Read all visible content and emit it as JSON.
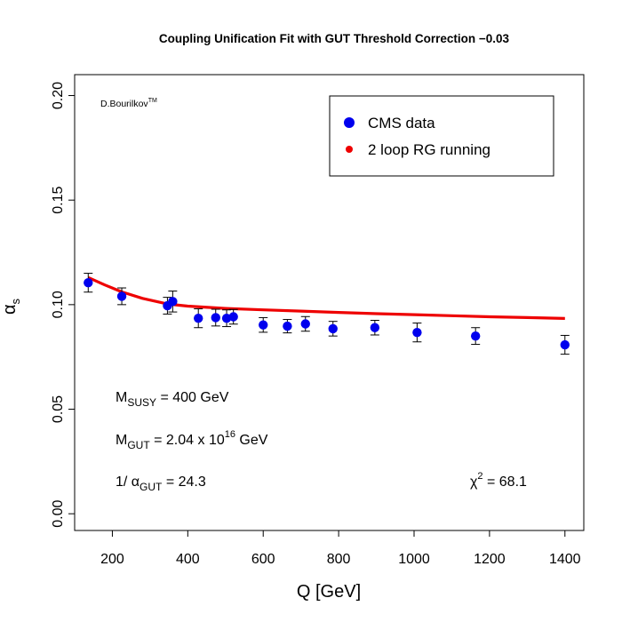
{
  "chart_data": {
    "type": "scatter",
    "title": "Coupling Unification Fit with GUT Threshold Correction −0.03",
    "xlabel": "Q [GeV]",
    "ylabel": "α",
    "ylabel_sub": "s",
    "xlim": [
      100,
      1450
    ],
    "ylim": [
      -0.008,
      0.21
    ],
    "xticks": [
      200,
      400,
      600,
      800,
      1000,
      1200,
      1400
    ],
    "xtick_labels": [
      "200",
      "400",
      "600",
      "800",
      "1000",
      "1200",
      "1400"
    ],
    "yticks": [
      0.0,
      0.05,
      0.1,
      0.15,
      0.2
    ],
    "ytick_labels": [
      "0.00",
      "0.05",
      "0.10",
      "0.15",
      "0.20"
    ],
    "grid": false,
    "legend_position": "top-right",
    "series": [
      {
        "name": "CMS data",
        "kind": "points-with-errorbars",
        "color": "#0000ee",
        "points": [
          {
            "x": 136,
            "y": 0.1105,
            "err": 0.0045
          },
          {
            "x": 225,
            "y": 0.104,
            "err": 0.004
          },
          {
            "x": 346,
            "y": 0.0995,
            "err": 0.004
          },
          {
            "x": 360,
            "y": 0.1015,
            "err": 0.005
          },
          {
            "x": 428,
            "y": 0.0935,
            "err": 0.0045
          },
          {
            "x": 474,
            "y": 0.0938,
            "err": 0.004
          },
          {
            "x": 503,
            "y": 0.0935,
            "err": 0.004
          },
          {
            "x": 521,
            "y": 0.0942,
            "err": 0.0035
          },
          {
            "x": 600,
            "y": 0.0903,
            "err": 0.0035
          },
          {
            "x": 664,
            "y": 0.0897,
            "err": 0.0032
          },
          {
            "x": 712,
            "y": 0.0908,
            "err": 0.0035
          },
          {
            "x": 785,
            "y": 0.0885,
            "err": 0.0035
          },
          {
            "x": 896,
            "y": 0.089,
            "err": 0.0035
          },
          {
            "x": 1008,
            "y": 0.0867,
            "err": 0.0045
          },
          {
            "x": 1163,
            "y": 0.085,
            "err": 0.004
          },
          {
            "x": 1400,
            "y": 0.0808,
            "err": 0.0045
          }
        ]
      },
      {
        "name": "2 loop RG running",
        "kind": "line",
        "color": "#ee0000",
        "points": [
          {
            "x": 136,
            "y": 0.113
          },
          {
            "x": 180,
            "y": 0.1094
          },
          {
            "x": 225,
            "y": 0.1061
          },
          {
            "x": 280,
            "y": 0.103
          },
          {
            "x": 346,
            "y": 0.1003
          },
          {
            "x": 400,
            "y": 0.0993
          },
          {
            "x": 500,
            "y": 0.0982
          },
          {
            "x": 600,
            "y": 0.0975
          },
          {
            "x": 700,
            "y": 0.0969
          },
          {
            "x": 800,
            "y": 0.0963
          },
          {
            "x": 900,
            "y": 0.0957
          },
          {
            "x": 1000,
            "y": 0.0952
          },
          {
            "x": 1100,
            "y": 0.0947
          },
          {
            "x": 1200,
            "y": 0.0942
          },
          {
            "x": 1300,
            "y": 0.0938
          },
          {
            "x": 1400,
            "y": 0.0934
          }
        ]
      }
    ],
    "annotations": {
      "author": "D.Bourilkov",
      "author_sup": "TM",
      "msusy_main": "M",
      "msusy_sub": "SUSY",
      "msusy_value": " = 400 GeV",
      "mgut_main": "M",
      "mgut_sub": "GUT",
      "mgut_value": " = 2.04 x 10",
      "mgut_exp": "16",
      "mgut_unit": " GeV",
      "alpha_prefix": "1/ α",
      "alpha_sub": "GUT",
      "alpha_value": " = 24.3",
      "chi_main": "χ",
      "chi_sup": "2",
      "chi_value": " = 68.1"
    }
  }
}
